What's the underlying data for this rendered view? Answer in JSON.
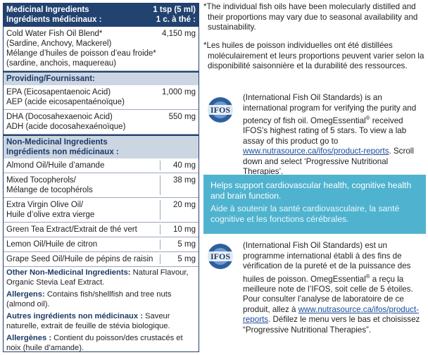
{
  "table": {
    "header_left_1": "Medicinal Ingredients",
    "header_left_2": "Ingrédients médicinaux :",
    "header_right_1": "1 tsp (5 ml)",
    "header_right_2": "1 c. à thé :",
    "rows_main": [
      {
        "name": "Cold Water Fish Oil Blend*\n(Sardine, Anchovy, Mackerel)\nMélange d’huiles de poisson d’eau froide*\n(sardine, anchois, maquereau)",
        "amount": "4,150 mg"
      }
    ],
    "providing_label": "Providing/Fournissant:",
    "rows_providing": [
      {
        "name": "EPA (Eicosapentaenoic Acid)\nAEP (acide eicosapentaénoïque)",
        "amount": "1,000 mg"
      },
      {
        "name": "DHA (Docosahexaenoic Acid)\nADH (acide docosahexaénoïque)",
        "amount": "550 mg"
      }
    ],
    "nonmed_label_1": "Non-Medicinal Ingredients",
    "nonmed_label_2": "Ingrédients non médicinaux :",
    "rows_nonmed": [
      {
        "name": "Almond Oil/Huile d’amande",
        "amount": "40 mg"
      },
      {
        "name": "Mixed Tocopherols/\nMélange de tocophérols",
        "amount": "38 mg"
      },
      {
        "name": "Extra Virgin Olive Oil/\nHuile d’olive extra vierge",
        "amount": "20 mg"
      },
      {
        "name": "Green Tea Extract/Extrait de thé vert",
        "amount": "10 mg"
      },
      {
        "name": "Lemon Oil/Huile de citron",
        "amount": "5 mg"
      },
      {
        "name": "Grape Seed Oil/Huile de pépins de raisin",
        "amount": "5 mg"
      }
    ],
    "other_label": "Other Non-Medicinal Ingredients:",
    "other_text": " Natural Flavour, Organic Stevia Leaf Extract.",
    "allergens_label": "Allergens:",
    "allergens_text": " Contains fish/shellfish and tree nuts (almond oil).",
    "autres_label": "Autres ingrédients non médicinaux :",
    "autres_text": " Saveur naturelle, extrait de feuille de stévia biologique.",
    "allergenes_label": "Allergènes :",
    "allergenes_text": " Contient du poisson/des crustacés et noix (huile d’amande)."
  },
  "notes": {
    "en": "*The individual fish oils have been molecularly distilled and their proportions may vary due to seasonal availability and sustainability.",
    "fr": "*Les huiles de poisson individuelles ont été distillées moléculairement et leurs proportions peuvent varier selon la disponibilité saisonnière et la durabilité des ressources."
  },
  "ifos_logo_text": "IFOS",
  "ifos_en": {
    "p1": "(International Fish Oil Standards) is an international program for verifying the purity and potency of fish oil. OmegEssential",
    "reg": "®",
    "p2": " received IFOS’s highest rating of 5 stars. To view a lab assay of this product go to ",
    "link": "www.nutrasource.ca/ifos/product-reports",
    "p3": ". Scroll down and select ‘Progressive Nutritional Therapies’."
  },
  "banner": {
    "en": "Helps support cardiovascular health, cognitive health and brain function.",
    "fr": "Aide à soutenir la santé cardiovasculaire, la santé cognitive et les fonctions cérébrales."
  },
  "ifos_fr": {
    "p1": "(International Fish Oil Standards) est un programme international établi à des fins de vérification de la pureté et de la puissance des huiles de poisson. OmegEssential",
    "reg": "®",
    "p2": " a reçu la meilleure note de l’IFOS, soit celle de 5 étoiles. Pour consulter l’analyse de laboratoire de ce produit, allez à ",
    "link": "www.nutrasource.ca/ifos/product-reports",
    "p3": ". Défilez le menu vers le bas et choisissez “Progressive Nutritional Therapies”."
  },
  "colors": {
    "navy": "#22426f",
    "band": "#ccd6e3",
    "banner": "#4fb3cf"
  }
}
